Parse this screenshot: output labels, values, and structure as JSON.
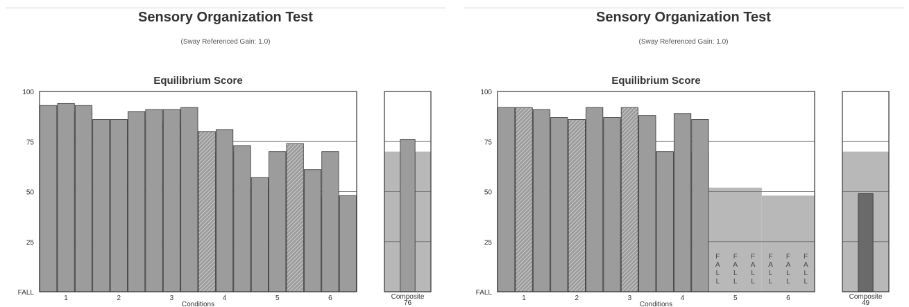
{
  "colors": {
    "band": "#b8b8b8",
    "bar": "#9c9c9c",
    "bar_dark": "#6a6a6a",
    "hatch": "#7f7f7f",
    "frame": "#333333",
    "grid": "#777777"
  },
  "chart_data": [
    {
      "type": "bar",
      "title": "Sensory Organization Test",
      "subtitle": "(Sway Referenced Gain: 1.0)",
      "chart_title": "Equilibrium Score",
      "xlabel": "Conditions",
      "ylim": [
        0,
        100
      ],
      "yticks": [
        "FALL",
        "25",
        "50",
        "75",
        "100"
      ],
      "grid": true,
      "categories": [
        "1",
        "2",
        "3",
        "4",
        "5",
        "6"
      ],
      "normal_band": [
        90,
        86,
        85,
        70,
        52,
        48
      ],
      "trials": [
        [
          93,
          94,
          93
        ],
        [
          86,
          86,
          90
        ],
        [
          91,
          91,
          92
        ],
        [
          80,
          81,
          73
        ],
        [
          57,
          70,
          74
        ],
        [
          61,
          70,
          48
        ]
      ],
      "trial_hatched": [
        [
          false,
          false,
          false
        ],
        [
          false,
          false,
          false
        ],
        [
          false,
          false,
          false
        ],
        [
          true,
          false,
          false
        ],
        [
          false,
          false,
          true
        ],
        [
          false,
          false,
          false
        ]
      ],
      "trial_fall": [
        [
          false,
          false,
          false
        ],
        [
          false,
          false,
          false
        ],
        [
          false,
          false,
          false
        ],
        [
          false,
          false,
          false
        ],
        [
          false,
          false,
          false
        ],
        [
          false,
          false,
          false
        ]
      ],
      "fall_letters": [
        "F",
        "A",
        "L",
        "L"
      ],
      "composite": {
        "label": "Composite",
        "value": 76,
        "value_label": "76",
        "normal": 70,
        "dark": false
      }
    },
    {
      "type": "bar",
      "title": "Sensory Organization Test",
      "subtitle": "(Sway Referenced Gain: 1.0)",
      "chart_title": "Equilibrium Score",
      "xlabel": "Conditions",
      "ylim": [
        0,
        100
      ],
      "yticks": [
        "FALL",
        "25",
        "50",
        "75",
        "100"
      ],
      "grid": true,
      "categories": [
        "1",
        "2",
        "3",
        "4",
        "5",
        "6"
      ],
      "normal_band": [
        90,
        85,
        86,
        70,
        52,
        48
      ],
      "trials": [
        [
          92,
          92,
          91
        ],
        [
          87,
          86,
          92
        ],
        [
          87,
          92,
          88
        ],
        [
          70,
          89,
          86
        ],
        [
          0,
          0,
          0
        ],
        [
          0,
          0,
          0
        ]
      ],
      "trial_hatched": [
        [
          false,
          true,
          false
        ],
        [
          false,
          true,
          false
        ],
        [
          false,
          true,
          false
        ],
        [
          false,
          false,
          false
        ],
        [
          false,
          false,
          false
        ],
        [
          false,
          false,
          false
        ]
      ],
      "trial_fall": [
        [
          false,
          false,
          false
        ],
        [
          false,
          false,
          false
        ],
        [
          false,
          false,
          false
        ],
        [
          false,
          false,
          false
        ],
        [
          true,
          true,
          true
        ],
        [
          true,
          true,
          true
        ]
      ],
      "fall_letters": [
        "F",
        "A",
        "L",
        "L"
      ],
      "composite": {
        "label": "Composite",
        "value": 49,
        "value_label": "49",
        "normal": 70,
        "dark": true
      }
    }
  ]
}
